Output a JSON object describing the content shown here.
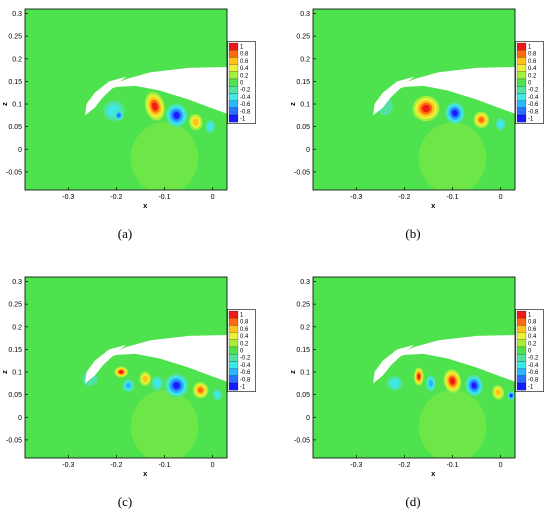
{
  "colors": {
    "field": "#4fe24f",
    "levels": [
      "#1a1aff",
      "#2a6fff",
      "#2ab4ff",
      "#3fe8e8",
      "#4fe2a0",
      "#4fe24f",
      "#a6ee3c",
      "#e8f03a",
      "#ffc21a",
      "#ff6a10",
      "#ee1a1a"
    ]
  },
  "chart_data": [
    {
      "type": "heatmap",
      "panel": "(a)",
      "xlabel": "x",
      "ylabel": "z",
      "xlim": [
        -0.39,
        0.03
      ],
      "ylim": [
        -0.09,
        0.31
      ],
      "xticks": [
        "-0.3",
        "-0.2",
        "-0.1",
        "0"
      ],
      "yticks": [
        "-0.05",
        "0",
        "0.05",
        "0.1",
        "0.15",
        "0.2",
        "0.25",
        "0.3"
      ],
      "legend_levels": [
        "1",
        "0.8",
        "0.6",
        "0.4",
        "0.2",
        "0",
        "-0.2",
        "-0.4",
        "-0.6",
        "-0.8",
        "-1"
      ]
    },
    {
      "type": "heatmap",
      "panel": "(b)",
      "xlabel": "x",
      "ylabel": "z",
      "xlim": [
        -0.39,
        0.03
      ],
      "ylim": [
        -0.09,
        0.31
      ],
      "xticks": [
        "-0.3",
        "-0.2",
        "-0.1",
        "0"
      ],
      "yticks": [
        "-0.05",
        "0",
        "0.05",
        "0.1",
        "0.15",
        "0.2",
        "0.25",
        "0.3"
      ],
      "legend_levels": [
        "1",
        "0.8",
        "0.6",
        "0.4",
        "0.2",
        "0",
        "-0.2",
        "-0.4",
        "-0.6",
        "-0.8",
        "-1"
      ]
    },
    {
      "type": "heatmap",
      "panel": "(c)",
      "xlabel": "x",
      "ylabel": "z",
      "xlim": [
        -0.39,
        0.03
      ],
      "ylim": [
        -0.09,
        0.31
      ],
      "xticks": [
        "-0.3",
        "-0.2",
        "-0.1",
        "0"
      ],
      "yticks": [
        "-0.05",
        "0",
        "0.05",
        "0.1",
        "0.15",
        "0.2",
        "0.25",
        "0.3"
      ],
      "legend_levels": [
        "1",
        "0.8",
        "0.6",
        "0.4",
        "0.2",
        "0",
        "-0.2",
        "-0.4",
        "-0.6",
        "-0.8",
        "-1"
      ]
    },
    {
      "type": "heatmap",
      "panel": "(d)",
      "xlabel": "x",
      "ylabel": "z",
      "xlim": [
        -0.39,
        0.03
      ],
      "ylim": [
        -0.09,
        0.31
      ],
      "xticks": [
        "-0.3",
        "-0.2",
        "-0.1",
        "0"
      ],
      "yticks": [
        "-0.05",
        "0",
        "0.05",
        "0.1",
        "0.15",
        "0.2",
        "0.25",
        "0.3"
      ],
      "legend_levels": [
        "1",
        "0.8",
        "0.6",
        "0.4",
        "0.2",
        "0",
        "-0.2",
        "-0.4",
        "-0.6",
        "-0.8",
        "-1"
      ]
    }
  ]
}
